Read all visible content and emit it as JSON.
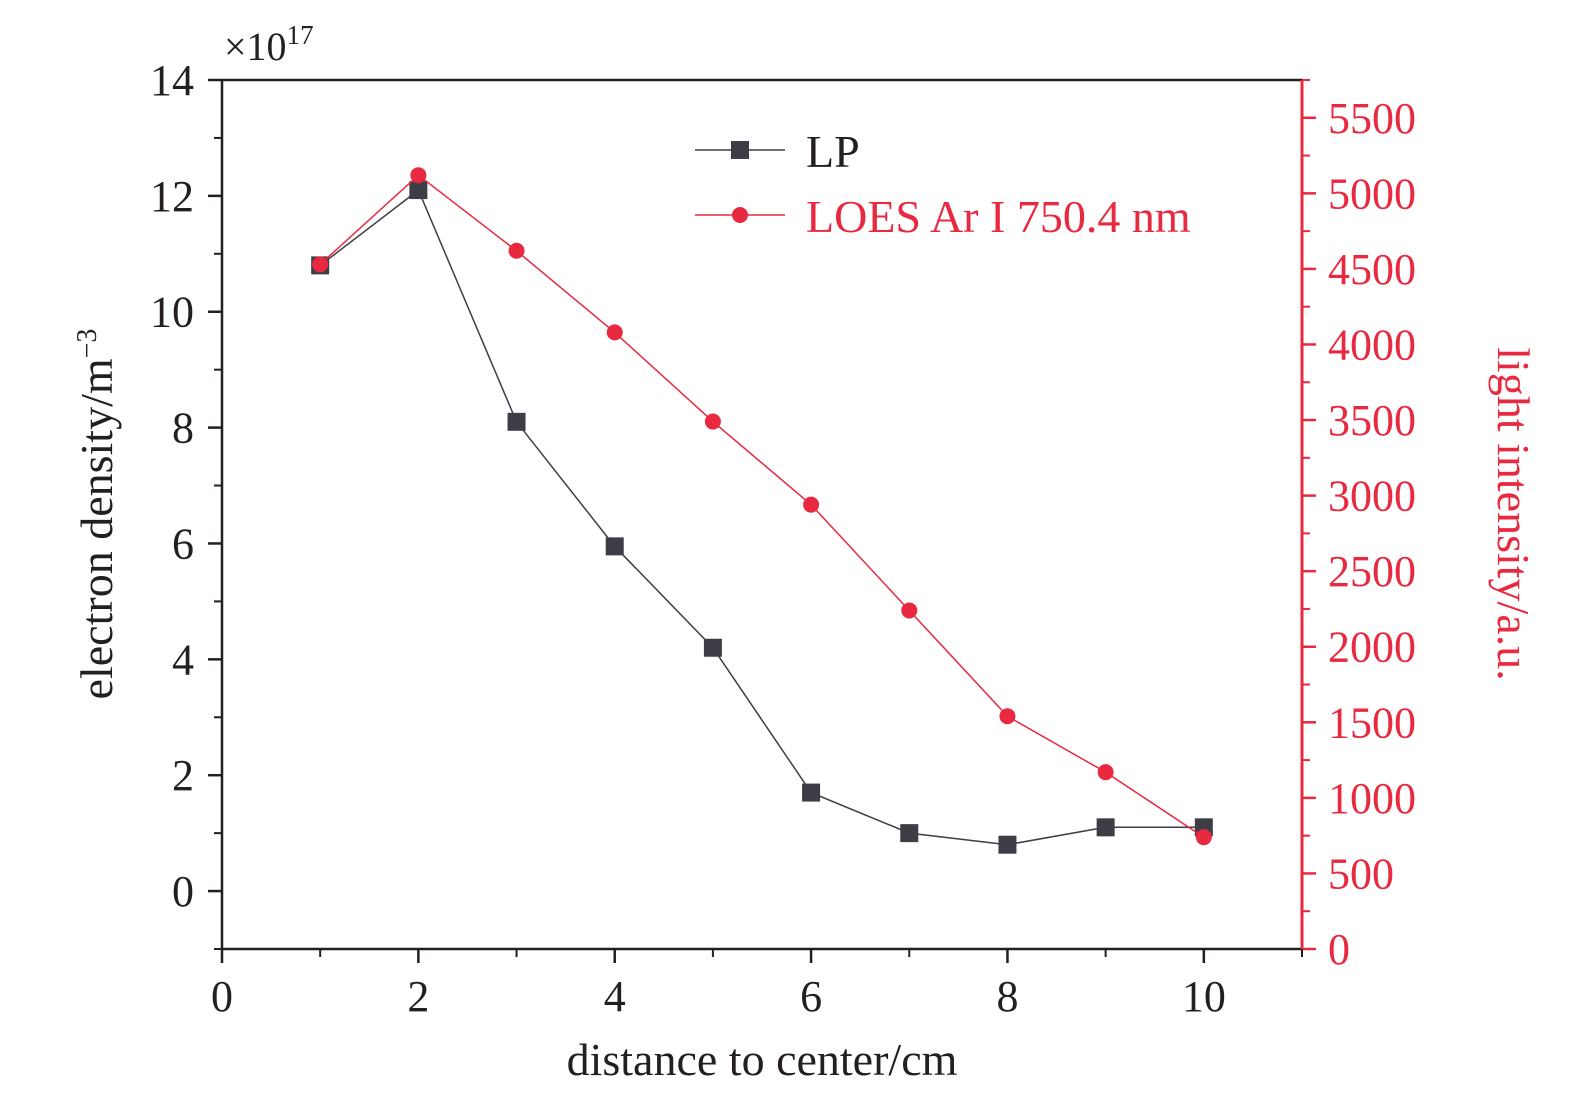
{
  "chart_data": {
    "type": "line",
    "x": [
      1,
      2,
      3,
      4,
      5,
      6,
      7,
      8,
      9,
      10
    ],
    "xlabel": "distance to center/cm",
    "xlim": [
      0,
      11
    ],
    "xticks": [
      "0",
      "2",
      "4",
      "6",
      "8",
      "10"
    ],
    "y_left": {
      "label_main": "electron density/m",
      "label_sup": "−3",
      "multiplier_base": "×10",
      "multiplier_exp": "17",
      "ylim": [
        -1,
        14
      ],
      "ticks": [
        "0",
        "2",
        "4",
        "6",
        "8",
        "10",
        "12",
        "14"
      ]
    },
    "y_right": {
      "label": "light intensity/a.u.",
      "ylim": [
        0,
        5750
      ],
      "ticks": [
        "0",
        "500",
        "1000",
        "1500",
        "2000",
        "2500",
        "3000",
        "3500",
        "4000",
        "4500",
        "5000",
        "5500"
      ]
    },
    "series": [
      {
        "name": "LP",
        "axis": "left",
        "marker": "square",
        "color": "#3d3d45",
        "values": [
          10.8,
          12.1,
          8.1,
          5.95,
          4.2,
          1.7,
          1.0,
          0.8,
          1.1,
          1.1
        ]
      },
      {
        "name": "LOES Ar I 750.4 nm",
        "axis": "right",
        "marker": "circle",
        "color": "#e8293f",
        "values": [
          4530,
          5120,
          4620,
          4080,
          3490,
          2940,
          2240,
          1540,
          1170,
          740
        ]
      }
    ],
    "legend_position": "top-right",
    "grid": false
  }
}
